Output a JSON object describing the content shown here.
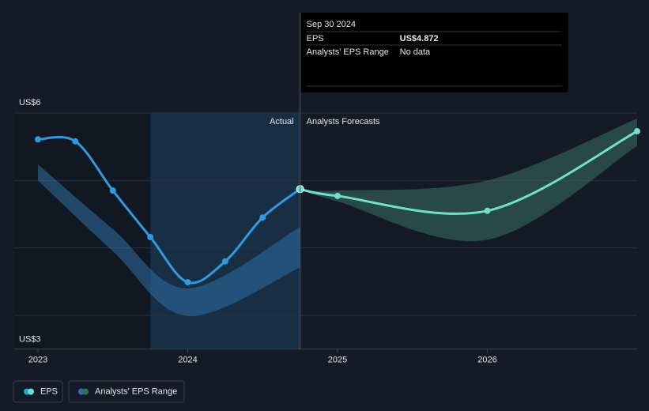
{
  "chart_data": {
    "type": "line",
    "xlim": [
      2022.84,
      2027
    ],
    "xticks": [
      2023,
      2024,
      2025,
      2026
    ],
    "ylim": [
      2.5,
      6
    ],
    "yticks": [
      {
        "value": 3,
        "label": "US$3"
      },
      4,
      5,
      {
        "value": 6,
        "label": "US$6"
      }
    ],
    "grid": true,
    "actual_end": 2024.75,
    "divider_labels": [
      "Actual",
      "Analysts Forecasts"
    ],
    "series": [
      {
        "name": "EPS",
        "color": "#2d9be0",
        "x": [
          2023,
          2023.25,
          2023.5,
          2023.75,
          2024,
          2024.25,
          2024.5,
          2024.75
        ],
        "values": [
          5.61,
          5.58,
          4.85,
          4.16,
          3.49,
          3.8,
          4.45,
          4.872
        ]
      },
      {
        "color": "#6fe0cc",
        "x": [
          2024.75,
          2025,
          2026,
          2027
        ],
        "values": [
          4.872,
          4.77,
          4.55,
          5.73
        ]
      }
    ],
    "range_series": [
      {
        "name": "Analysts' EPS Range",
        "color": "#2d6fa6",
        "x": [
          2023,
          2023.5,
          2024,
          2024.75
        ],
        "low": [
          5.0,
          3.95,
          2.99,
          3.71
        ],
        "high": [
          5.24,
          4.28,
          3.4,
          4.31
        ]
      },
      {
        "color": "#3a6e64",
        "x": [
          2024.75,
          2025,
          2026,
          2027
        ],
        "low": [
          4.872,
          4.69,
          4.12,
          5.51
        ],
        "high": [
          4.872,
          4.85,
          5.0,
          5.92
        ]
      }
    ],
    "tooltip": {
      "date": "Sep 30 2024",
      "rows": [
        [
          "EPS",
          "US$4.872"
        ],
        [
          "Analysts' EPS Range",
          "No data"
        ]
      ]
    }
  }
}
